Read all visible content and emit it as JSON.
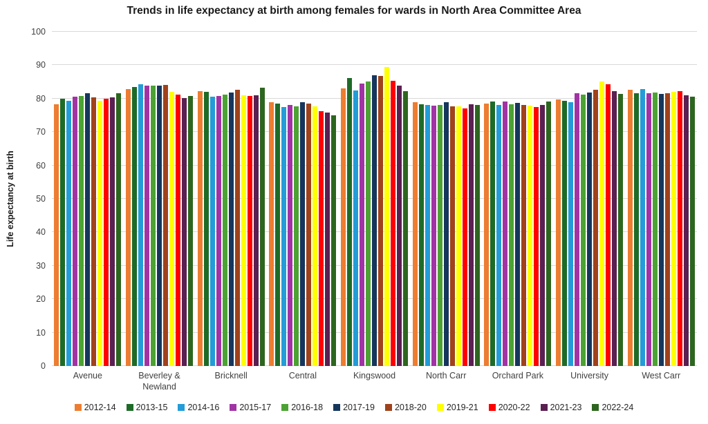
{
  "chart_data": {
    "type": "bar",
    "title": "Trends in life expectancy at birth among females for wards in North Area Committee Area",
    "xlabel": "",
    "ylabel": "Life expectancy at birth",
    "ylim": [
      0,
      100
    ],
    "y_ticks": [
      0,
      10,
      20,
      30,
      40,
      50,
      60,
      70,
      80,
      90,
      100
    ],
    "grid": true,
    "legend_position": "bottom",
    "gridline_color": "#d9d9d9",
    "categories": [
      "Avenue",
      "Beverley & Newland",
      "Bricknell",
      "Central",
      "Kingswood",
      "North Carr",
      "Orchard Park",
      "University",
      "West Carr"
    ],
    "series": [
      {
        "name": "2012-14",
        "color": "#ED7D31",
        "values": [
          78.4,
          82.9,
          82.3,
          79.0,
          83.1,
          78.9,
          78.5,
          79.8,
          82.6
        ]
      },
      {
        "name": "2013-15",
        "color": "#1E6B28",
        "values": [
          79.9,
          83.4,
          82.1,
          78.6,
          86.1,
          78.3,
          79.2,
          79.3,
          81.7
        ]
      },
      {
        "name": "2014-16",
        "color": "#239CD8",
        "values": [
          79.3,
          84.2,
          80.6,
          77.5,
          82.4,
          78.0,
          78.1,
          79.0,
          82.8
        ]
      },
      {
        "name": "2015-17",
        "color": "#A133A5",
        "values": [
          80.6,
          83.8,
          80.7,
          78.1,
          84.6,
          77.8,
          79.1,
          81.6,
          81.6
        ]
      },
      {
        "name": "2016-18",
        "color": "#4CA233",
        "values": [
          80.8,
          83.9,
          81.1,
          77.7,
          85.1,
          78.2,
          78.3,
          81.1,
          81.8
        ]
      },
      {
        "name": "2017-19",
        "color": "#16365C",
        "values": [
          81.6,
          83.9,
          81.9,
          79.0,
          86.9,
          78.9,
          78.7,
          81.8,
          81.5
        ]
      },
      {
        "name": "2018-20",
        "color": "#A0421B",
        "values": [
          80.4,
          84.0,
          82.7,
          78.5,
          86.8,
          77.6,
          78.2,
          82.7,
          81.7
        ]
      },
      {
        "name": "2019-21",
        "color": "#FFFF00",
        "values": [
          79.4,
          82.1,
          80.9,
          77.6,
          89.5,
          77.6,
          77.9,
          85.1,
          82.0
        ]
      },
      {
        "name": "2020-22",
        "color": "#FF0000",
        "values": [
          80.0,
          81.1,
          80.8,
          76.2,
          85.3,
          77.1,
          77.5,
          84.2,
          82.3
        ]
      },
      {
        "name": "2021-23",
        "color": "#5B1F52",
        "values": [
          80.4,
          80.1,
          81.0,
          75.9,
          83.8,
          78.3,
          78.2,
          82.3,
          80.9
        ]
      },
      {
        "name": "2022-24",
        "color": "#2D661F",
        "values": [
          81.7,
          80.8,
          83.3,
          74.9,
          82.3,
          78.0,
          79.2,
          81.4,
          80.6
        ]
      }
    ]
  }
}
